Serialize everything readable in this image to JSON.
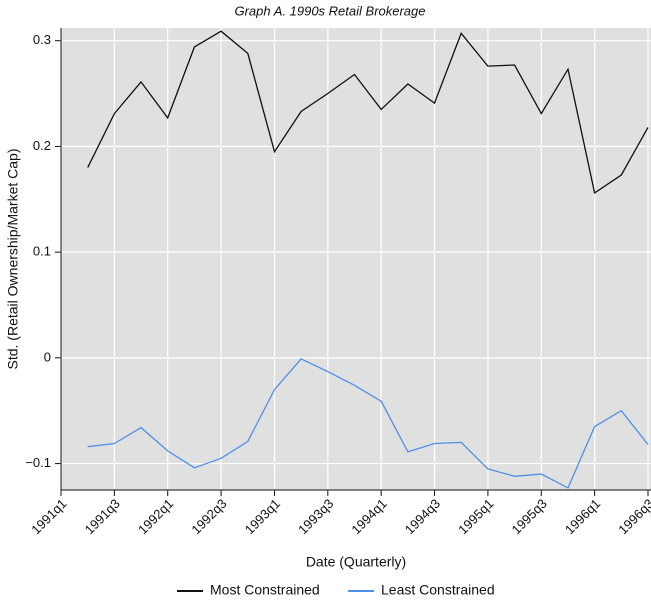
{
  "chart_data": {
    "type": "line",
    "title": "Graph A. 1990s Retail Brokerage",
    "x_label": "Date (Quarterly)",
    "y_label": "Std. (Retail Ownership/Market Cap)",
    "categories": [
      "1991q1",
      null,
      "1991q3",
      null,
      "1992q1",
      null,
      "1992q3",
      null,
      "1993q1",
      null,
      "1993q3",
      null,
      "1994q1",
      null,
      "1994q3",
      null,
      "1995q1",
      null,
      "1995q3",
      null,
      "1996q1",
      null,
      "1996q3"
    ],
    "series": [
      {
        "name": "Most Constrained",
        "color": "#111111",
        "values": [
          null,
          0.18,
          0.231,
          0.261,
          0.227,
          0.294,
          0.309,
          0.288,
          0.195,
          0.233,
          0.25,
          0.268,
          0.235,
          0.259,
          0.241,
          0.307,
          0.276,
          0.277,
          0.231,
          0.273,
          0.156,
          0.173,
          0.218
        ]
      },
      {
        "name": "Least Constrained",
        "color": "#4d8fe8",
        "values": [
          null,
          -0.084,
          -0.081,
          -0.066,
          -0.088,
          -0.104,
          -0.095,
          -0.079,
          -0.03,
          -0.001,
          -0.013,
          -0.026,
          -0.041,
          -0.089,
          -0.081,
          -0.08,
          -0.105,
          -0.112,
          -0.11,
          -0.123,
          -0.065,
          -0.05,
          -0.082
        ]
      }
    ],
    "ylim": [
      -0.125,
      0.312
    ],
    "yticks": [
      {
        "value": -0.1,
        "label": "−0.1"
      },
      0,
      0.1,
      0.2,
      0.3
    ],
    "grid": true,
    "legend": "bottom"
  }
}
